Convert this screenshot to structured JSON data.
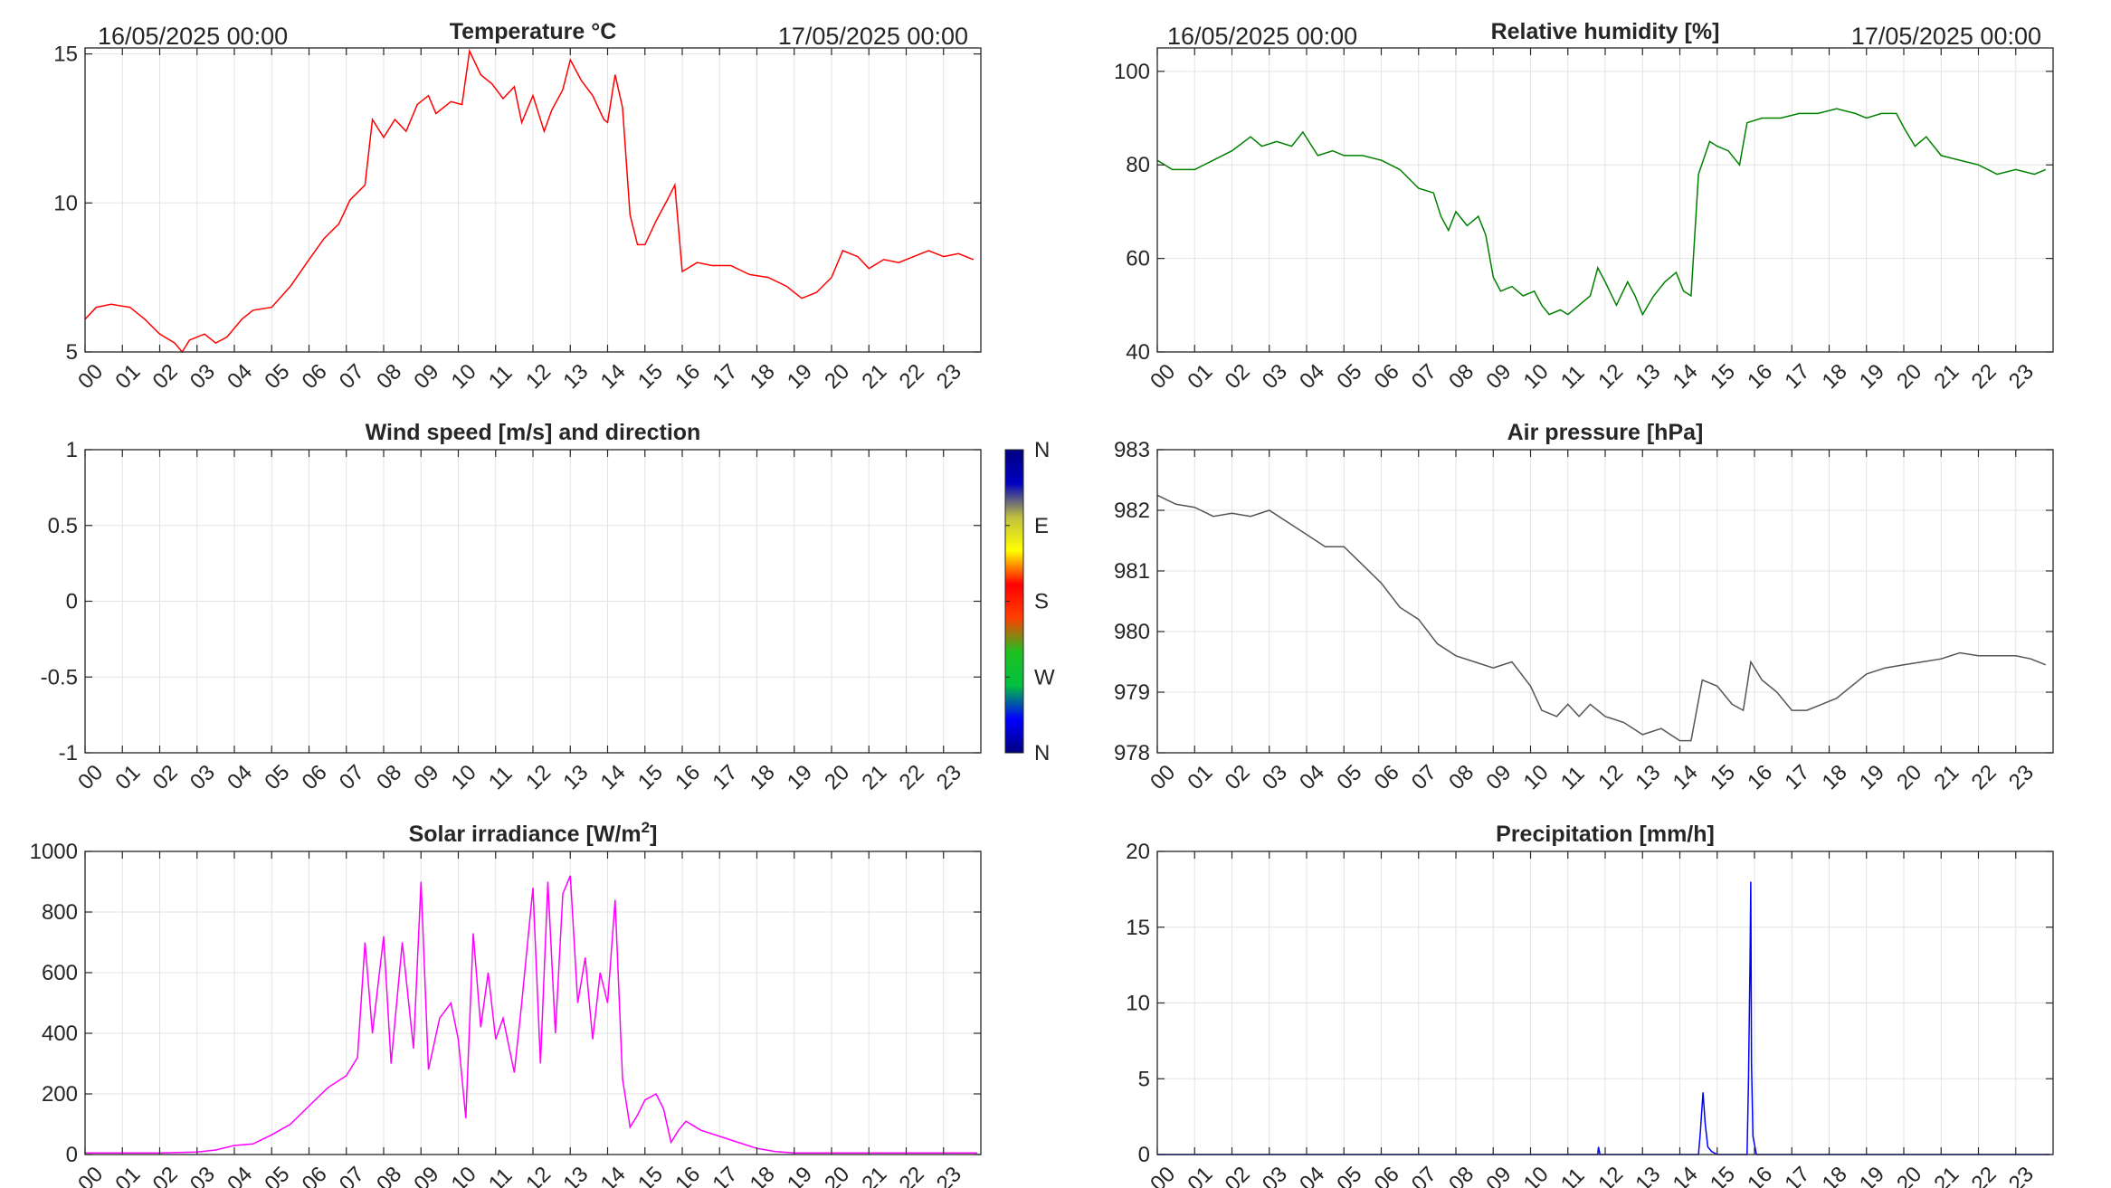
{
  "hours": [
    "00",
    "01",
    "02",
    "03",
    "04",
    "05",
    "06",
    "07",
    "08",
    "09",
    "10",
    "11",
    "12",
    "13",
    "14",
    "15",
    "16",
    "17",
    "18",
    "19",
    "20",
    "21",
    "22",
    "23"
  ],
  "panels": [
    {
      "id": "temperature",
      "title": "Temperature °C",
      "date_left": "16/05/2025 00:00",
      "date_right": "17/05/2025 00:00",
      "color": "#ff0000",
      "ylim": [
        5,
        15.2
      ],
      "yticks": [
        5,
        10,
        15
      ],
      "ytick_labels": [
        "5",
        "10",
        "15"
      ],
      "series": [
        [
          0,
          6.1
        ],
        [
          0.3,
          6.5
        ],
        [
          0.7,
          6.6
        ],
        [
          1.2,
          6.5
        ],
        [
          1.6,
          6.1
        ],
        [
          2.0,
          5.6
        ],
        [
          2.4,
          5.3
        ],
        [
          2.6,
          5.0
        ],
        [
          2.8,
          5.4
        ],
        [
          3.2,
          5.6
        ],
        [
          3.5,
          5.3
        ],
        [
          3.8,
          5.5
        ],
        [
          4.2,
          6.1
        ],
        [
          4.5,
          6.4
        ],
        [
          5.0,
          6.5
        ],
        [
          5.5,
          7.2
        ],
        [
          6.0,
          8.1
        ],
        [
          6.4,
          8.8
        ],
        [
          6.8,
          9.3
        ],
        [
          7.1,
          10.1
        ],
        [
          7.5,
          10.6
        ],
        [
          7.7,
          12.8
        ],
        [
          8.0,
          12.2
        ],
        [
          8.3,
          12.8
        ],
        [
          8.6,
          12.4
        ],
        [
          8.9,
          13.3
        ],
        [
          9.2,
          13.6
        ],
        [
          9.4,
          13.0
        ],
        [
          9.8,
          13.4
        ],
        [
          10.1,
          13.3
        ],
        [
          10.3,
          15.1
        ],
        [
          10.6,
          14.3
        ],
        [
          10.9,
          14.0
        ],
        [
          11.2,
          13.5
        ],
        [
          11.5,
          13.9
        ],
        [
          11.7,
          12.7
        ],
        [
          12.0,
          13.6
        ],
        [
          12.3,
          12.4
        ],
        [
          12.5,
          13.1
        ],
        [
          12.8,
          13.8
        ],
        [
          13.0,
          14.8
        ],
        [
          13.3,
          14.1
        ],
        [
          13.6,
          13.6
        ],
        [
          13.9,
          12.8
        ],
        [
          14.0,
          12.7
        ],
        [
          14.2,
          14.3
        ],
        [
          14.4,
          13.2
        ],
        [
          14.6,
          9.6
        ],
        [
          14.8,
          8.6
        ],
        [
          15.0,
          8.6
        ],
        [
          15.3,
          9.4
        ],
        [
          15.6,
          10.1
        ],
        [
          15.8,
          10.6
        ],
        [
          16.0,
          7.7
        ],
        [
          16.4,
          8.0
        ],
        [
          16.8,
          7.9
        ],
        [
          17.3,
          7.9
        ],
        [
          17.8,
          7.6
        ],
        [
          18.3,
          7.5
        ],
        [
          18.8,
          7.2
        ],
        [
          19.2,
          6.8
        ],
        [
          19.6,
          7.0
        ],
        [
          20.0,
          7.5
        ],
        [
          20.3,
          8.4
        ],
        [
          20.7,
          8.2
        ],
        [
          21.0,
          7.8
        ],
        [
          21.4,
          8.1
        ],
        [
          21.8,
          8.0
        ],
        [
          22.2,
          8.2
        ],
        [
          22.6,
          8.4
        ],
        [
          23.0,
          8.2
        ],
        [
          23.4,
          8.3
        ],
        [
          23.8,
          8.1
        ]
      ]
    },
    {
      "id": "humidity",
      "title": "Relative humidity [%]",
      "date_left": "16/05/2025 00:00",
      "date_right": "17/05/2025 00:00",
      "color": "#008000",
      "ylim": [
        40,
        105
      ],
      "yticks": [
        40,
        60,
        80,
        100
      ],
      "ytick_labels": [
        "40",
        "60",
        "80",
        "100"
      ],
      "series": [
        [
          0,
          81
        ],
        [
          0.4,
          79
        ],
        [
          1.0,
          79
        ],
        [
          1.5,
          81
        ],
        [
          2.0,
          83
        ],
        [
          2.5,
          86
        ],
        [
          2.8,
          84
        ],
        [
          3.2,
          85
        ],
        [
          3.6,
          84
        ],
        [
          3.9,
          87
        ],
        [
          4.3,
          82
        ],
        [
          4.7,
          83
        ],
        [
          5.0,
          82
        ],
        [
          5.5,
          82
        ],
        [
          6.0,
          81
        ],
        [
          6.5,
          79
        ],
        [
          7.0,
          75
        ],
        [
          7.4,
          74
        ],
        [
          7.6,
          69
        ],
        [
          7.8,
          66
        ],
        [
          8.0,
          70
        ],
        [
          8.3,
          67
        ],
        [
          8.6,
          69
        ],
        [
          8.8,
          65
        ],
        [
          9.0,
          56
        ],
        [
          9.2,
          53
        ],
        [
          9.5,
          54
        ],
        [
          9.8,
          52
        ],
        [
          10.1,
          53
        ],
        [
          10.3,
          50
        ],
        [
          10.5,
          48
        ],
        [
          10.8,
          49
        ],
        [
          11.0,
          48
        ],
        [
          11.3,
          50
        ],
        [
          11.6,
          52
        ],
        [
          11.8,
          58
        ],
        [
          12.0,
          55
        ],
        [
          12.3,
          50
        ],
        [
          12.6,
          55
        ],
        [
          12.8,
          52
        ],
        [
          13.0,
          48
        ],
        [
          13.3,
          52
        ],
        [
          13.6,
          55
        ],
        [
          13.9,
          57
        ],
        [
          14.1,
          53
        ],
        [
          14.3,
          52
        ],
        [
          14.5,
          78
        ],
        [
          14.8,
          85
        ],
        [
          15.0,
          84
        ],
        [
          15.3,
          83
        ],
        [
          15.6,
          80
        ],
        [
          15.8,
          89
        ],
        [
          16.2,
          90
        ],
        [
          16.7,
          90
        ],
        [
          17.2,
          91
        ],
        [
          17.7,
          91
        ],
        [
          18.2,
          92
        ],
        [
          18.7,
          91
        ],
        [
          19.0,
          90
        ],
        [
          19.4,
          91
        ],
        [
          19.8,
          91
        ],
        [
          20.0,
          88
        ],
        [
          20.3,
          84
        ],
        [
          20.6,
          86
        ],
        [
          21.0,
          82
        ],
        [
          21.5,
          81
        ],
        [
          22.0,
          80
        ],
        [
          22.5,
          78
        ],
        [
          23.0,
          79
        ],
        [
          23.5,
          78
        ],
        [
          23.8,
          79
        ]
      ]
    },
    {
      "id": "wind",
      "title": "Wind speed [m/s] and direction",
      "color": "#0000ff",
      "ylim": [
        -1,
        1
      ],
      "yticks": [
        -1,
        -0.5,
        0,
        0.5,
        1
      ],
      "ytick_labels": [
        "-1",
        "-0.5",
        "0",
        "0.5",
        "1"
      ],
      "series": [],
      "colorbar_labels": [
        "N",
        "W",
        "S",
        "E",
        "N"
      ],
      "colorbar_colors": [
        "#000080",
        "#0000ff",
        "#00c040",
        "#20c020",
        "#ff4000",
        "#ff0000",
        "#ffff00",
        "#c0c040",
        "#0000c0",
        "#000080"
      ]
    },
    {
      "id": "pressure",
      "title": "Air pressure [hPa]",
      "color": "#555555",
      "ylim": [
        978,
        983
      ],
      "yticks": [
        978,
        979,
        980,
        981,
        982,
        983
      ],
      "ytick_labels": [
        "978",
        "979",
        "980",
        "981",
        "982",
        "983"
      ],
      "series": [
        [
          0,
          982.25
        ],
        [
          0.5,
          982.1
        ],
        [
          1.0,
          982.05
        ],
        [
          1.5,
          981.9
        ],
        [
          2.0,
          981.95
        ],
        [
          2.5,
          981.9
        ],
        [
          3.0,
          982.0
        ],
        [
          3.5,
          981.8
        ],
        [
          4.0,
          981.6
        ],
        [
          4.5,
          981.4
        ],
        [
          5.0,
          981.4
        ],
        [
          5.5,
          981.1
        ],
        [
          6.0,
          980.8
        ],
        [
          6.5,
          980.4
        ],
        [
          7.0,
          980.2
        ],
        [
          7.5,
          979.8
        ],
        [
          8.0,
          979.6
        ],
        [
          8.5,
          979.5
        ],
        [
          9.0,
          979.4
        ],
        [
          9.5,
          979.5
        ],
        [
          10.0,
          979.1
        ],
        [
          10.3,
          978.7
        ],
        [
          10.7,
          978.6
        ],
        [
          11.0,
          978.8
        ],
        [
          11.3,
          978.6
        ],
        [
          11.6,
          978.8
        ],
        [
          12.0,
          978.6
        ],
        [
          12.5,
          978.5
        ],
        [
          13.0,
          978.3
        ],
        [
          13.5,
          978.4
        ],
        [
          14.0,
          978.2
        ],
        [
          14.3,
          978.2
        ],
        [
          14.6,
          979.2
        ],
        [
          15.0,
          979.1
        ],
        [
          15.4,
          978.8
        ],
        [
          15.7,
          978.7
        ],
        [
          15.9,
          979.5
        ],
        [
          16.2,
          979.2
        ],
        [
          16.6,
          979.0
        ],
        [
          17.0,
          978.7
        ],
        [
          17.4,
          978.7
        ],
        [
          17.8,
          978.8
        ],
        [
          18.2,
          978.9
        ],
        [
          18.6,
          979.1
        ],
        [
          19.0,
          979.3
        ],
        [
          19.5,
          979.4
        ],
        [
          20.0,
          979.45
        ],
        [
          20.5,
          979.5
        ],
        [
          21.0,
          979.55
        ],
        [
          21.5,
          979.65
        ],
        [
          22.0,
          979.6
        ],
        [
          22.5,
          979.6
        ],
        [
          23.0,
          979.6
        ],
        [
          23.4,
          979.55
        ],
        [
          23.8,
          979.45
        ]
      ]
    },
    {
      "id": "solar",
      "title": "Solar irradiance [W/m",
      "title_sup": "2",
      "title_end": "]",
      "color": "#ff00ff",
      "ylim": [
        0,
        1000
      ],
      "yticks": [
        0,
        200,
        400,
        600,
        800,
        1000
      ],
      "ytick_labels": [
        "0",
        "200",
        "400",
        "600",
        "800",
        "1000"
      ],
      "series": [
        [
          0,
          5
        ],
        [
          1,
          5
        ],
        [
          2,
          5
        ],
        [
          3,
          8
        ],
        [
          3.5,
          15
        ],
        [
          4,
          30
        ],
        [
          4.5,
          35
        ],
        [
          5,
          65
        ],
        [
          5.5,
          100
        ],
        [
          6,
          160
        ],
        [
          6.5,
          220
        ],
        [
          7,
          260
        ],
        [
          7.3,
          320
        ],
        [
          7.5,
          700
        ],
        [
          7.7,
          400
        ],
        [
          8,
          720
        ],
        [
          8.2,
          300
        ],
        [
          8.5,
          700
        ],
        [
          8.8,
          350
        ],
        [
          9,
          900
        ],
        [
          9.2,
          280
        ],
        [
          9.5,
          450
        ],
        [
          9.8,
          500
        ],
        [
          10,
          380
        ],
        [
          10.2,
          120
        ],
        [
          10.4,
          730
        ],
        [
          10.6,
          420
        ],
        [
          10.8,
          600
        ],
        [
          11,
          380
        ],
        [
          11.2,
          450
        ],
        [
          11.5,
          270
        ],
        [
          11.7,
          500
        ],
        [
          12,
          880
        ],
        [
          12.2,
          300
        ],
        [
          12.4,
          900
        ],
        [
          12.6,
          400
        ],
        [
          12.8,
          860
        ],
        [
          13,
          920
        ],
        [
          13.2,
          500
        ],
        [
          13.4,
          650
        ],
        [
          13.6,
          380
        ],
        [
          13.8,
          600
        ],
        [
          14,
          500
        ],
        [
          14.2,
          840
        ],
        [
          14.4,
          250
        ],
        [
          14.6,
          90
        ],
        [
          14.8,
          130
        ],
        [
          15,
          180
        ],
        [
          15.3,
          200
        ],
        [
          15.5,
          150
        ],
        [
          15.7,
          40
        ],
        [
          15.9,
          80
        ],
        [
          16.1,
          110
        ],
        [
          16.5,
          80
        ],
        [
          17,
          60
        ],
        [
          17.5,
          40
        ],
        [
          18,
          20
        ],
        [
          18.5,
          10
        ],
        [
          19,
          5
        ],
        [
          20,
          5
        ],
        [
          21,
          5
        ],
        [
          22,
          5
        ],
        [
          23,
          5
        ],
        [
          23.9,
          5
        ]
      ]
    },
    {
      "id": "precipitation",
      "title": "Precipitation [mm/h]",
      "color": "#0000ff",
      "ylim": [
        0,
        20
      ],
      "yticks": [
        0,
        5,
        10,
        15,
        20
      ],
      "ytick_labels": [
        "0",
        "5",
        "10",
        "15",
        "20"
      ],
      "series": [
        [
          0,
          0
        ],
        [
          11.8,
          0
        ],
        [
          11.82,
          0.5
        ],
        [
          11.86,
          0
        ],
        [
          14.5,
          0
        ],
        [
          14.55,
          1.5
        ],
        [
          14.62,
          4.1
        ],
        [
          14.68,
          2
        ],
        [
          14.75,
          0.5
        ],
        [
          14.85,
          0.2
        ],
        [
          15.0,
          0
        ],
        [
          15.8,
          0
        ],
        [
          15.84,
          5
        ],
        [
          15.88,
          13
        ],
        [
          15.9,
          18
        ],
        [
          15.92,
          6
        ],
        [
          15.96,
          1.2
        ],
        [
          16.05,
          0
        ],
        [
          23.9,
          0
        ]
      ]
    }
  ]
}
